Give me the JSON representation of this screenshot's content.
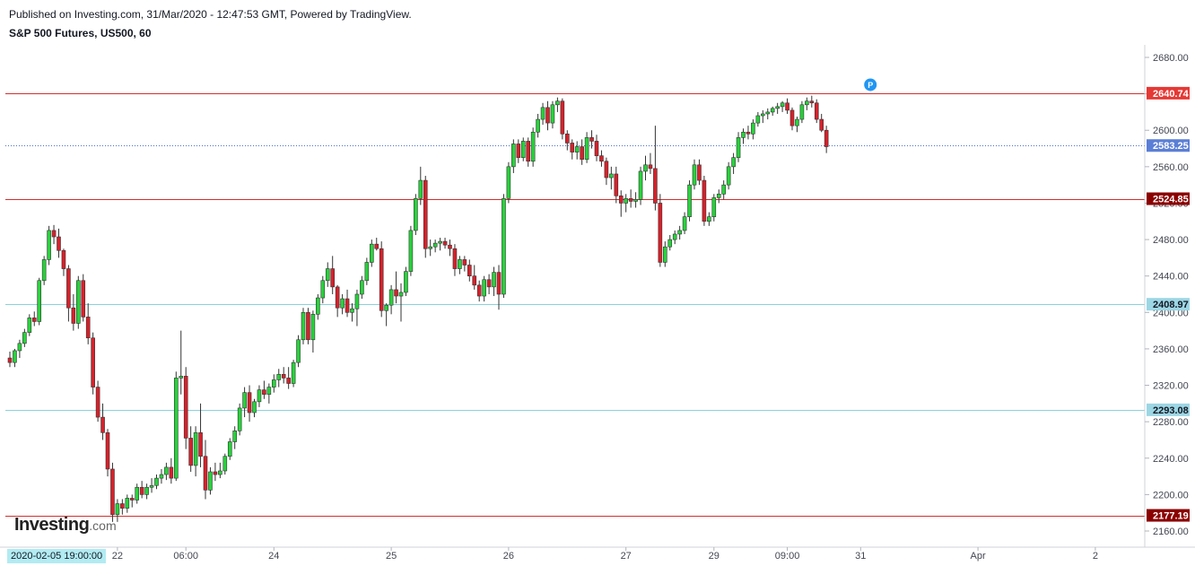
{
  "header": {
    "published": "Published on Investing.com, 31/Mar/2020 - 12:47:53 GMT, Powered by TradingView.",
    "title": "S&P 500 Futures, US500, 60"
  },
  "logo": {
    "brand": "Investing",
    "suffix": ".com"
  },
  "crosshair_date": "2020-02-05 19:00:00",
  "colors": {
    "up": "#26d43a",
    "down": "#d9202a",
    "resistance": "#d32f2f",
    "support": "#8ad2dd",
    "last_price": "#4a6fd3",
    "tag_red": "#e53935",
    "tag_darkred": "#8b0000",
    "tag_blue": "#5b7fd6",
    "tag_cyan": "#9cd6e4"
  },
  "chart_data": {
    "type": "candlestick",
    "title": "S&P 500 Futures, US500, 60",
    "ylim": [
      2150,
      2700
    ],
    "y_ticks": [
      "2160.00",
      "2200.00",
      "2240.00",
      "2280.00",
      "2320.00",
      "2360.00",
      "2400.00",
      "2440.00",
      "2480.00",
      "2520.00",
      "2560.00",
      "2600.00",
      "2640.00",
      "2680.00"
    ],
    "x_ticks": [
      {
        "label": "22",
        "bar": 22
      },
      {
        "label": "06:00",
        "bar": 36
      },
      {
        "label": "24",
        "bar": 54
      },
      {
        "label": "25",
        "bar": 78
      },
      {
        "label": "26",
        "bar": 102
      },
      {
        "label": "27",
        "bar": 126
      },
      {
        "label": "29",
        "bar": 144
      },
      {
        "label": "09:00",
        "bar": 159
      },
      {
        "label": "31",
        "bar": 174
      },
      {
        "label": "Apr",
        "bar": 198
      },
      {
        "label": "2",
        "bar": 222
      }
    ],
    "levels": [
      {
        "label": "2640.74",
        "value": 2640.74,
        "kind": "resistance",
        "tag": "tag_red"
      },
      {
        "label": "2583.25",
        "value": 2583.25,
        "kind": "last_price",
        "tag": "tag_blue"
      },
      {
        "label": "2524.85",
        "value": 2524.85,
        "kind": "resistance",
        "tag": "tag_darkred"
      },
      {
        "label": "2408.97",
        "value": 2408.97,
        "kind": "support",
        "tag": "tag_cyan"
      },
      {
        "label": "2293.08",
        "value": 2293.08,
        "kind": "support",
        "tag": "tag_cyan"
      },
      {
        "label": "2177.19",
        "value": 2177.19,
        "kind": "resistance",
        "tag": "tag_darkred"
      }
    ],
    "marker": {
      "label": "P",
      "bar": 176,
      "value": 2650
    },
    "candles": [
      [
        2350,
        2357,
        2340,
        2345
      ],
      [
        2345,
        2360,
        2340,
        2358
      ],
      [
        2358,
        2370,
        2350,
        2366
      ],
      [
        2366,
        2382,
        2362,
        2378
      ],
      [
        2378,
        2398,
        2374,
        2394
      ],
      [
        2394,
        2401,
        2385,
        2390
      ],
      [
        2390,
        2438,
        2386,
        2435
      ],
      [
        2435,
        2462,
        2430,
        2458
      ],
      [
        2458,
        2495,
        2452,
        2490
      ],
      [
        2490,
        2496,
        2475,
        2483
      ],
      [
        2483,
        2492,
        2460,
        2468
      ],
      [
        2468,
        2470,
        2440,
        2448
      ],
      [
        2448,
        2452,
        2390,
        2405
      ],
      [
        2405,
        2420,
        2380,
        2388
      ],
      [
        2388,
        2440,
        2382,
        2435
      ],
      [
        2435,
        2442,
        2390,
        2395
      ],
      [
        2395,
        2410,
        2365,
        2372
      ],
      [
        2372,
        2378,
        2310,
        2318
      ],
      [
        2318,
        2325,
        2280,
        2285
      ],
      [
        2285,
        2300,
        2260,
        2268
      ],
      [
        2268,
        2272,
        2220,
        2228
      ],
      [
        2228,
        2235,
        2170,
        2178
      ],
      [
        2178,
        2195,
        2170,
        2190
      ],
      [
        2190,
        2195,
        2178,
        2185
      ],
      [
        2185,
        2200,
        2180,
        2196
      ],
      [
        2196,
        2200,
        2186,
        2194
      ],
      [
        2194,
        2212,
        2190,
        2208
      ],
      [
        2208,
        2215,
        2196,
        2200
      ],
      [
        2200,
        2212,
        2195,
        2208
      ],
      [
        2208,
        2218,
        2202,
        2210
      ],
      [
        2210,
        2222,
        2206,
        2218
      ],
      [
        2218,
        2228,
        2212,
        2222
      ],
      [
        2222,
        2235,
        2216,
        2230
      ],
      [
        2230,
        2240,
        2212,
        2218
      ],
      [
        2218,
        2335,
        2215,
        2328
      ],
      [
        2328,
        2380,
        2310,
        2330
      ],
      [
        2330,
        2340,
        2250,
        2262
      ],
      [
        2262,
        2275,
        2225,
        2232
      ],
      [
        2232,
        2275,
        2220,
        2268
      ],
      [
        2268,
        2300,
        2230,
        2242
      ],
      [
        2242,
        2260,
        2195,
        2205
      ],
      [
        2205,
        2230,
        2200,
        2225
      ],
      [
        2225,
        2235,
        2215,
        2222
      ],
      [
        2222,
        2235,
        2218,
        2226
      ],
      [
        2226,
        2245,
        2222,
        2242
      ],
      [
        2242,
        2262,
        2238,
        2258
      ],
      [
        2258,
        2275,
        2250,
        2270
      ],
      [
        2270,
        2300,
        2265,
        2295
      ],
      [
        2295,
        2318,
        2285,
        2312
      ],
      [
        2312,
        2320,
        2280,
        2290
      ],
      [
        2290,
        2305,
        2285,
        2302
      ],
      [
        2302,
        2320,
        2296,
        2315
      ],
      [
        2315,
        2325,
        2305,
        2310
      ],
      [
        2310,
        2322,
        2300,
        2318
      ],
      [
        2318,
        2332,
        2312,
        2326
      ],
      [
        2326,
        2338,
        2318,
        2332
      ],
      [
        2332,
        2340,
        2322,
        2328
      ],
      [
        2328,
        2340,
        2316,
        2322
      ],
      [
        2322,
        2348,
        2318,
        2345
      ],
      [
        2345,
        2375,
        2340,
        2370
      ],
      [
        2370,
        2405,
        2365,
        2400
      ],
      [
        2400,
        2405,
        2365,
        2370
      ],
      [
        2370,
        2402,
        2356,
        2398
      ],
      [
        2398,
        2420,
        2392,
        2416
      ],
      [
        2416,
        2440,
        2410,
        2435
      ],
      [
        2435,
        2455,
        2428,
        2448
      ],
      [
        2448,
        2462,
        2420,
        2428
      ],
      [
        2428,
        2430,
        2395,
        2405
      ],
      [
        2405,
        2420,
        2398,
        2415
      ],
      [
        2415,
        2425,
        2395,
        2400
      ],
      [
        2400,
        2410,
        2390,
        2404
      ],
      [
        2404,
        2425,
        2385,
        2420
      ],
      [
        2420,
        2440,
        2415,
        2435
      ],
      [
        2435,
        2460,
        2430,
        2455
      ],
      [
        2455,
        2480,
        2450,
        2475
      ],
      [
        2475,
        2482,
        2468,
        2470
      ],
      [
        2470,
        2478,
        2395,
        2402
      ],
      [
        2402,
        2410,
        2385,
        2408
      ],
      [
        2408,
        2430,
        2398,
        2425
      ],
      [
        2425,
        2445,
        2410,
        2418
      ],
      [
        2418,
        2432,
        2390,
        2422
      ],
      [
        2422,
        2450,
        2418,
        2445
      ],
      [
        2445,
        2495,
        2440,
        2490
      ],
      [
        2490,
        2530,
        2485,
        2525
      ],
      [
        2525,
        2560,
        2518,
        2545
      ],
      [
        2545,
        2550,
        2460,
        2470
      ],
      [
        2470,
        2480,
        2462,
        2472
      ],
      [
        2472,
        2480,
        2466,
        2476
      ],
      [
        2476,
        2482,
        2468,
        2478
      ],
      [
        2478,
        2482,
        2470,
        2474
      ],
      [
        2474,
        2480,
        2462,
        2470
      ],
      [
        2470,
        2475,
        2440,
        2448
      ],
      [
        2448,
        2462,
        2442,
        2458
      ],
      [
        2458,
        2462,
        2445,
        2452
      ],
      [
        2452,
        2458,
        2434,
        2440
      ],
      [
        2440,
        2452,
        2425,
        2430
      ],
      [
        2430,
        2435,
        2412,
        2418
      ],
      [
        2418,
        2440,
        2412,
        2436
      ],
      [
        2436,
        2442,
        2420,
        2428
      ],
      [
        2428,
        2450,
        2418,
        2444
      ],
      [
        2444,
        2452,
        2403,
        2420
      ],
      [
        2420,
        2530,
        2416,
        2525
      ],
      [
        2525,
        2565,
        2520,
        2560
      ],
      [
        2560,
        2590,
        2553,
        2585
      ],
      [
        2585,
        2590,
        2564,
        2570
      ],
      [
        2570,
        2592,
        2566,
        2588
      ],
      [
        2588,
        2592,
        2560,
        2566
      ],
      [
        2566,
        2603,
        2560,
        2598
      ],
      [
        2598,
        2618,
        2592,
        2612
      ],
      [
        2612,
        2630,
        2606,
        2625
      ],
      [
        2625,
        2632,
        2600,
        2608
      ],
      [
        2608,
        2632,
        2602,
        2628
      ],
      [
        2628,
        2636,
        2620,
        2632
      ],
      [
        2632,
        2635,
        2590,
        2596
      ],
      [
        2596,
        2600,
        2578,
        2586
      ],
      [
        2586,
        2590,
        2568,
        2576
      ],
      [
        2576,
        2588,
        2568,
        2582
      ],
      [
        2582,
        2590,
        2562,
        2568
      ],
      [
        2568,
        2598,
        2564,
        2592
      ],
      [
        2592,
        2600,
        2580,
        2588
      ],
      [
        2588,
        2595,
        2566,
        2572
      ],
      [
        2572,
        2578,
        2560,
        2566
      ],
      [
        2566,
        2570,
        2540,
        2548
      ],
      [
        2548,
        2560,
        2535,
        2552
      ],
      [
        2552,
        2560,
        2520,
        2528
      ],
      [
        2528,
        2534,
        2505,
        2520
      ],
      [
        2520,
        2530,
        2510,
        2525
      ],
      [
        2525,
        2535,
        2515,
        2522
      ],
      [
        2522,
        2532,
        2515,
        2524
      ],
      [
        2524,
        2560,
        2518,
        2555
      ],
      [
        2555,
        2572,
        2545,
        2562
      ],
      [
        2562,
        2575,
        2552,
        2558
      ],
      [
        2558,
        2605,
        2512,
        2520
      ],
      [
        2520,
        2530,
        2450,
        2455
      ],
      [
        2455,
        2478,
        2450,
        2472
      ],
      [
        2472,
        2485,
        2468,
        2480
      ],
      [
        2480,
        2490,
        2475,
        2486
      ],
      [
        2486,
        2495,
        2480,
        2490
      ],
      [
        2490,
        2510,
        2486,
        2505
      ],
      [
        2505,
        2545,
        2500,
        2540
      ],
      [
        2540,
        2568,
        2535,
        2562
      ],
      [
        2562,
        2568,
        2540,
        2545
      ],
      [
        2545,
        2550,
        2495,
        2500
      ],
      [
        2500,
        2510,
        2495,
        2505
      ],
      [
        2505,
        2530,
        2500,
        2526
      ],
      [
        2526,
        2535,
        2520,
        2530
      ],
      [
        2530,
        2545,
        2524,
        2540
      ],
      [
        2540,
        2565,
        2535,
        2560
      ],
      [
        2560,
        2575,
        2552,
        2570
      ],
      [
        2570,
        2598,
        2565,
        2592
      ],
      [
        2592,
        2602,
        2585,
        2598
      ],
      [
        2598,
        2605,
        2590,
        2596
      ],
      [
        2596,
        2612,
        2590,
        2608
      ],
      [
        2608,
        2620,
        2604,
        2616
      ],
      [
        2616,
        2622,
        2608,
        2618
      ],
      [
        2618,
        2624,
        2612,
        2620
      ],
      [
        2620,
        2626,
        2616,
        2624
      ],
      [
        2624,
        2630,
        2618,
        2626
      ],
      [
        2626,
        2632,
        2620,
        2630
      ],
      [
        2630,
        2635,
        2618,
        2622
      ],
      [
        2622,
        2625,
        2600,
        2605
      ],
      [
        2605,
        2615,
        2598,
        2612
      ],
      [
        2612,
        2632,
        2608,
        2628
      ],
      [
        2628,
        2636,
        2622,
        2632
      ],
      [
        2632,
        2638,
        2625,
        2630
      ],
      [
        2630,
        2634,
        2608,
        2612
      ],
      [
        2612,
        2618,
        2598,
        2600
      ],
      [
        2600,
        2605,
        2575,
        2582
      ]
    ]
  }
}
